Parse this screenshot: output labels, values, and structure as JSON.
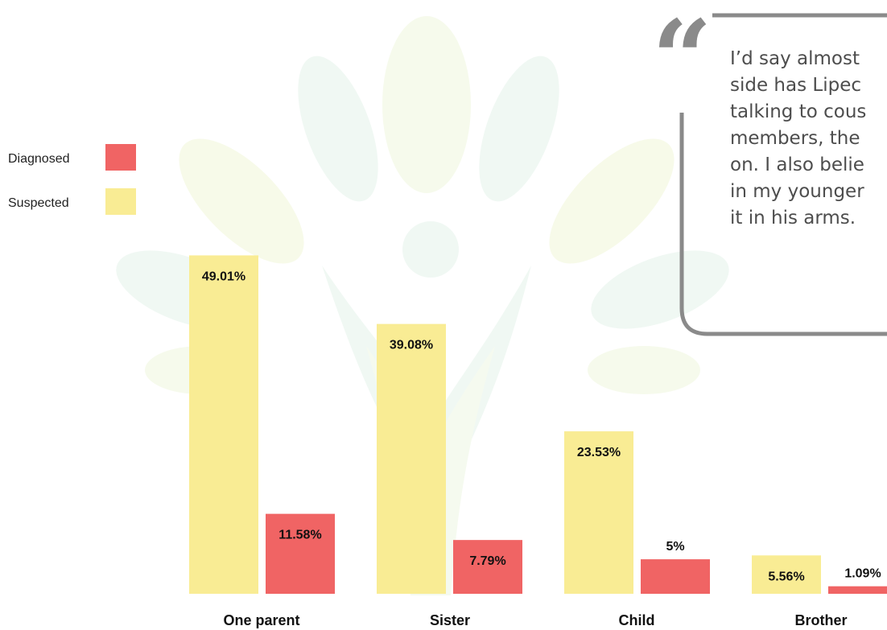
{
  "chart_data": {
    "type": "bar",
    "categories": [
      "One parent",
      "Sister",
      "Child",
      "Brother"
    ],
    "series": [
      {
        "name": "Suspected",
        "values": [
          49.01,
          39.08,
          23.53,
          5.56
        ],
        "labels": [
          "49.01%",
          "39.08%",
          "23.53%",
          "5.56%"
        ],
        "color": "#f9ec94"
      },
      {
        "name": "Diagnosed",
        "values": [
          11.58,
          7.79,
          5,
          1.09
        ],
        "labels": [
          "11.58%",
          "7.79%",
          "5%",
          "1.09%"
        ],
        "color": "#f06464"
      }
    ],
    "legend": {
      "position": "top-left",
      "entries": [
        {
          "label": "Diagnosed",
          "color": "#f06464"
        },
        {
          "label": "Suspected",
          "color": "#f9ec94"
        }
      ]
    },
    "ylim": [
      0,
      55
    ],
    "grid": false
  },
  "quote": {
    "mark": "“",
    "lines": [
      "I’d say almost",
      "side has Lipec",
      "talking to cous",
      "members, the",
      "on. I also belie",
      "in my younger",
      "it in his arms."
    ],
    "border_color": "#8a8a8a"
  },
  "colors": {
    "label_text": "#111111",
    "watermark": "#e6f3ec",
    "watermark_accent": "#f4f7da"
  }
}
